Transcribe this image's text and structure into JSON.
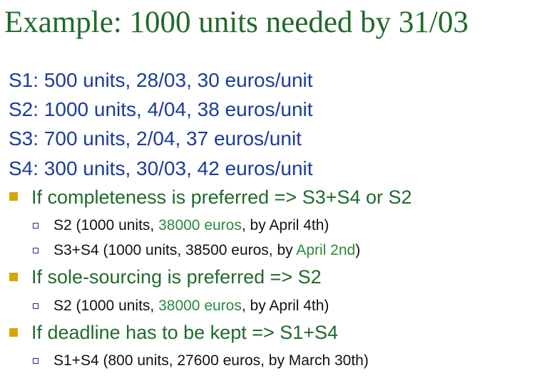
{
  "title": "Example: 1000 units needed by 31/03",
  "suppliers": [
    "S1: 500 units, 28/03, 30 euros/unit",
    "S2: 1000 units, 4/04, 38 euros/unit",
    "S3: 700 units, 2/04, 37 euros/unit",
    "S4: 300 units, 30/03, 42 euros/unit"
  ],
  "sections": [
    {
      "heading": "If completeness is preferred => S3+S4 or S2",
      "items": [
        {
          "pre": "S2 (1000 units, ",
          "hl": "38000 euros",
          "post": ", by April 4th)"
        },
        {
          "pre": "S3+S4 (1000 units, 38500 euros, by ",
          "hl": "April 2nd",
          "post": ")"
        }
      ]
    },
    {
      "heading": "If sole-sourcing is preferred => S2",
      "items": [
        {
          "pre": "S2 (1000 units, ",
          "hl": "38000 euros",
          "post": ", by April 4th)"
        }
      ]
    },
    {
      "heading": "If deadline has to be kept => S1+S4",
      "items": [
        {
          "pre": "S1+S4 (800 units, 27600 euros, by March 30th)",
          "hl": "",
          "post": ""
        }
      ]
    }
  ],
  "colors": {
    "title": "#1f6b2a",
    "supplier_text": "#1a3c9c",
    "heading_text": "#1f6b2a",
    "highlight_text": "#2a8a3c",
    "body_text": "#111111",
    "square_bullet": "#d9a50c",
    "hollow_bullet": "#1f2f7a"
  },
  "icons": {
    "level1_bullet": "filled-square-bullet-icon",
    "level2_bullet": "hollow-square-bullet-icon"
  }
}
